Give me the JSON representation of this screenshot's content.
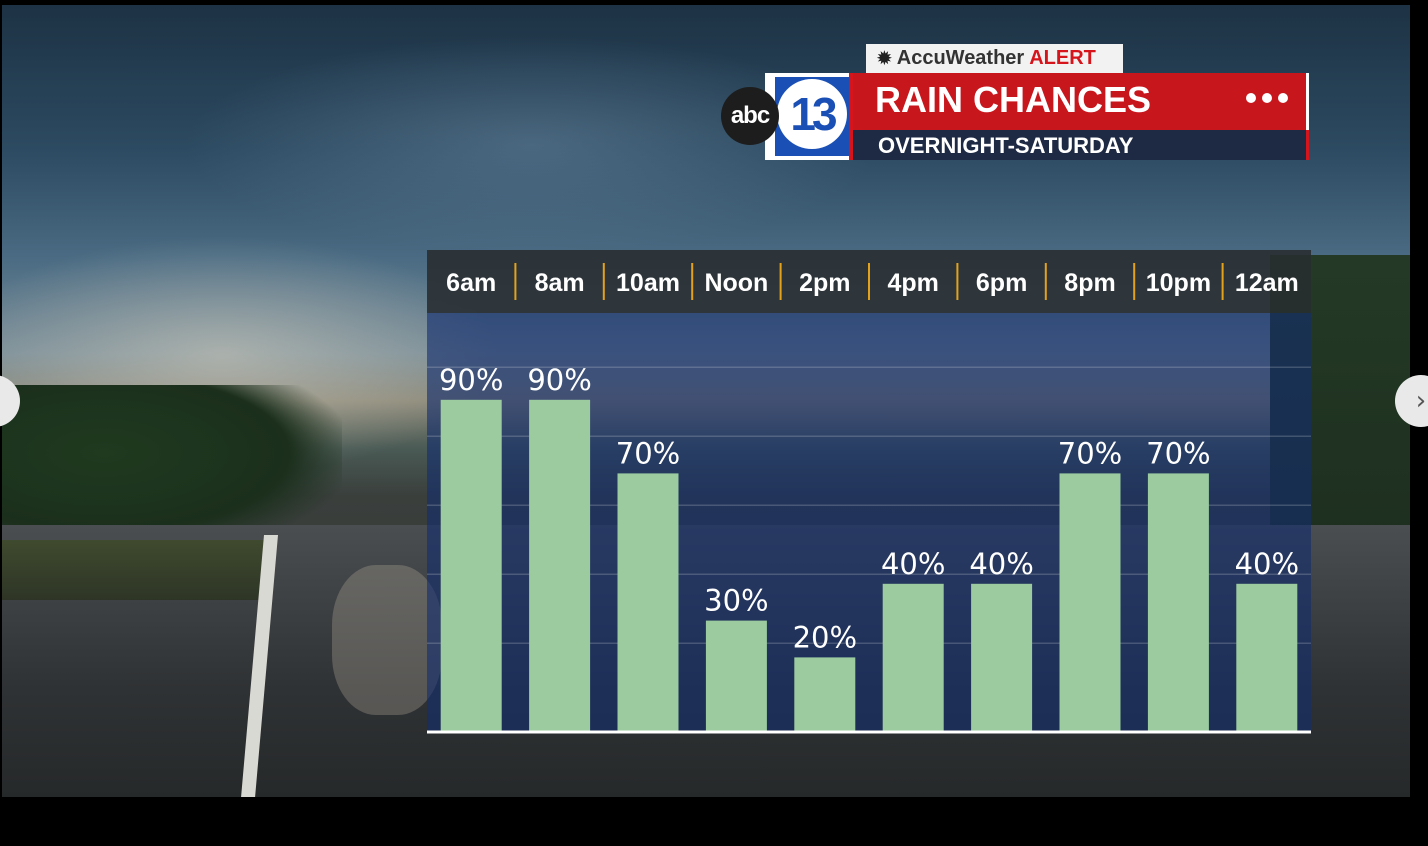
{
  "header": {
    "badge_icon": "sun-icon",
    "badge_brand": "AccuWeather",
    "badge_alert": "ALERT",
    "logo_abc": "abc",
    "logo_number": "13",
    "title": "RAIN CHANCES",
    "subtitle": "OVERNIGHT-SATURDAY",
    "menu_icon": "more-dots-icon"
  },
  "colors": {
    "bar": "#9bcb9e",
    "title_bar": "#c8161d",
    "subtitle_bar": "#1e2a44",
    "logo_blue": "#1a4fb5",
    "header_separator": "#e3a21a",
    "label_text": "#ffffff"
  },
  "nav": {
    "prev_icon": "chevron-left-icon",
    "next_icon": "chevron-right-icon"
  },
  "chart_data": {
    "type": "bar",
    "categories": [
      "6am",
      "8am",
      "10am",
      "Noon",
      "2pm",
      "4pm",
      "6pm",
      "8pm",
      "10pm",
      "12am"
    ],
    "values": [
      90,
      90,
      70,
      30,
      20,
      40,
      40,
      70,
      70,
      40
    ],
    "value_labels": [
      "90%",
      "90%",
      "70%",
      "30%",
      "20%",
      "40%",
      "40%",
      "70%",
      "70%",
      "40%"
    ],
    "ylim": [
      0,
      100
    ],
    "grid": true,
    "title": "",
    "xlabel": "",
    "ylabel": ""
  }
}
